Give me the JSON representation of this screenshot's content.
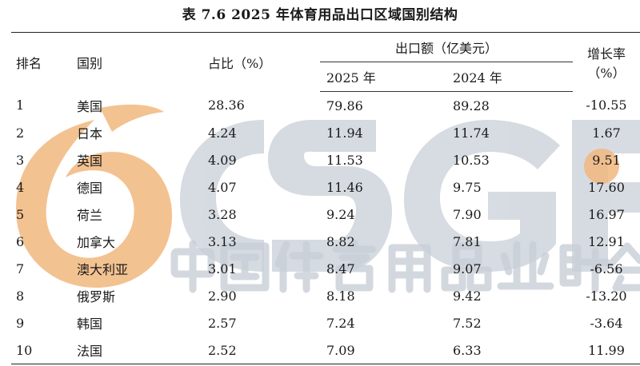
{
  "title": "表 7.6  2025 年体育用品出口区域国别结构",
  "watermark": {
    "logo_text": "CSGF",
    "org_name": "中国体育用品业联合会",
    "colors": {
      "orange": "#f1b77e",
      "gray": "#c9cfd8"
    }
  },
  "table": {
    "headers": {
      "rank": "排名",
      "country": "国别",
      "share": "占比（%）",
      "export_group": "出口额（亿美元）",
      "year_2025": "2025 年",
      "year_2024": "2024 年",
      "growth": "增长率（%）"
    },
    "rows": [
      {
        "rank": "1",
        "country": "美国",
        "share": "28.36",
        "y2025": "79.86",
        "y2024": "89.28",
        "growth": "-10.55"
      },
      {
        "rank": "2",
        "country": "日本",
        "share": "4.24",
        "y2025": "11.94",
        "y2024": "11.74",
        "growth": "1.67"
      },
      {
        "rank": "3",
        "country": "英国",
        "share": "4.09",
        "y2025": "11.53",
        "y2024": "10.53",
        "growth": "9.51"
      },
      {
        "rank": "4",
        "country": "德国",
        "share": "4.07",
        "y2025": "11.46",
        "y2024": "9.75",
        "growth": "17.60"
      },
      {
        "rank": "5",
        "country": "荷兰",
        "share": "3.28",
        "y2025": "9.24",
        "y2024": "7.90",
        "growth": "16.97"
      },
      {
        "rank": "6",
        "country": "加拿大",
        "share": "3.13",
        "y2025": "8.82",
        "y2024": "7.81",
        "growth": "12.91"
      },
      {
        "rank": "7",
        "country": "澳大利亚",
        "share": "3.01",
        "y2025": "8.47",
        "y2024": "9.07",
        "growth": "-6.56"
      },
      {
        "rank": "8",
        "country": "俄罗斯",
        "share": "2.90",
        "y2025": "8.18",
        "y2024": "9.42",
        "growth": "-13.20"
      },
      {
        "rank": "9",
        "country": "韩国",
        "share": "2.57",
        "y2025": "7.24",
        "y2024": "7.52",
        "growth": "-3.64"
      },
      {
        "rank": "10",
        "country": "法国",
        "share": "2.52",
        "y2025": "7.09",
        "y2024": "6.33",
        "growth": "11.99"
      }
    ]
  }
}
